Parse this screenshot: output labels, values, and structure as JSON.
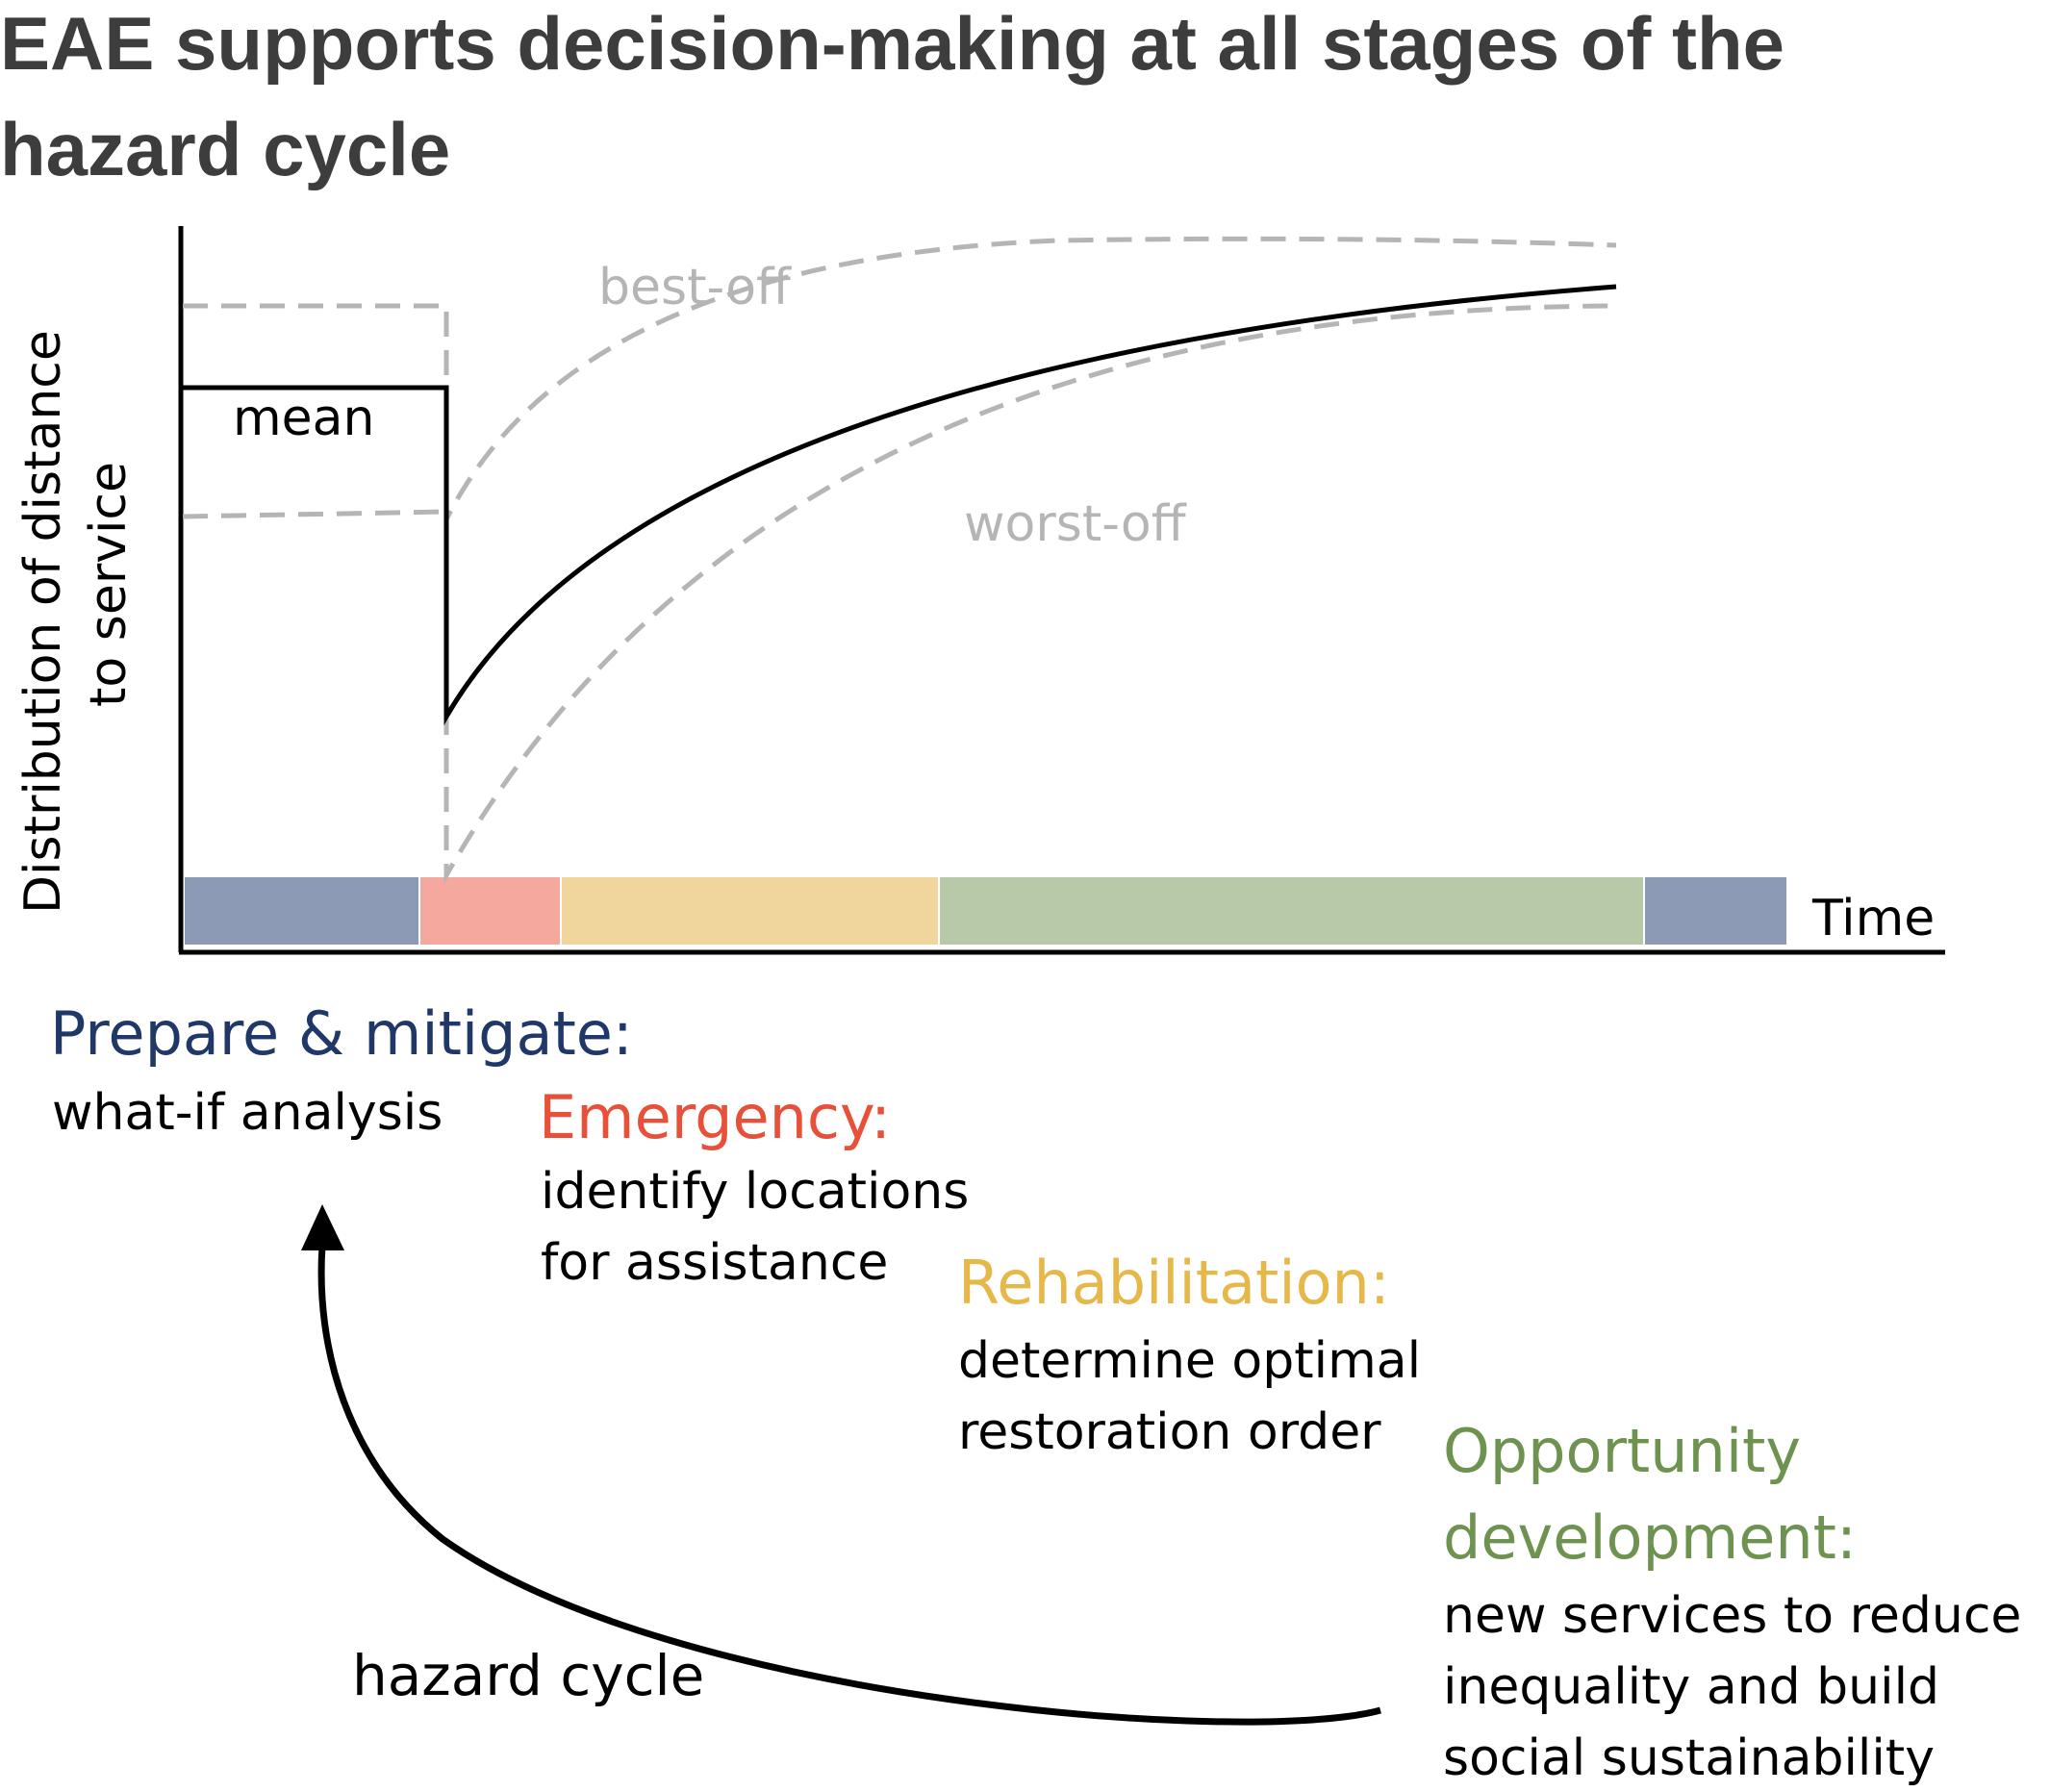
{
  "title": {
    "line1": "EAE supports decision-making at all stages of the",
    "line2": "hazard cycle"
  },
  "axes": {
    "y_label_line1": "Distribution of distance",
    "y_label_line2": "to service",
    "x_label": "Time"
  },
  "curves": {
    "mean_label": "mean",
    "best_label": "best-off",
    "worst_label": "worst-off"
  },
  "stages": {
    "prepare": {
      "heading": "Prepare & mitigate:",
      "lines": [
        "what-if analysis"
      ],
      "color": "#1f3868",
      "bar_color": "#8d9ab5"
    },
    "emergency": {
      "heading": "Emergency:",
      "lines": [
        "identify locations",
        "for assistance"
      ],
      "color": "#e8503a",
      "bar_color": "#f5a89d"
    },
    "rehabilitation": {
      "heading": "Rehabilitation:",
      "lines": [
        "determine optimal",
        "restoration order"
      ],
      "color": "#e6b84a",
      "bar_color": "#f0d69c"
    },
    "opportunity": {
      "heading_line1": "Opportunity",
      "heading_line2": "development:",
      "lines": [
        "new services to reduce",
        "inequality and build",
        "social sustainability"
      ],
      "color": "#6e9350",
      "bar_color": "#b7c9a8"
    }
  },
  "cycle": {
    "label": "hazard cycle"
  }
}
